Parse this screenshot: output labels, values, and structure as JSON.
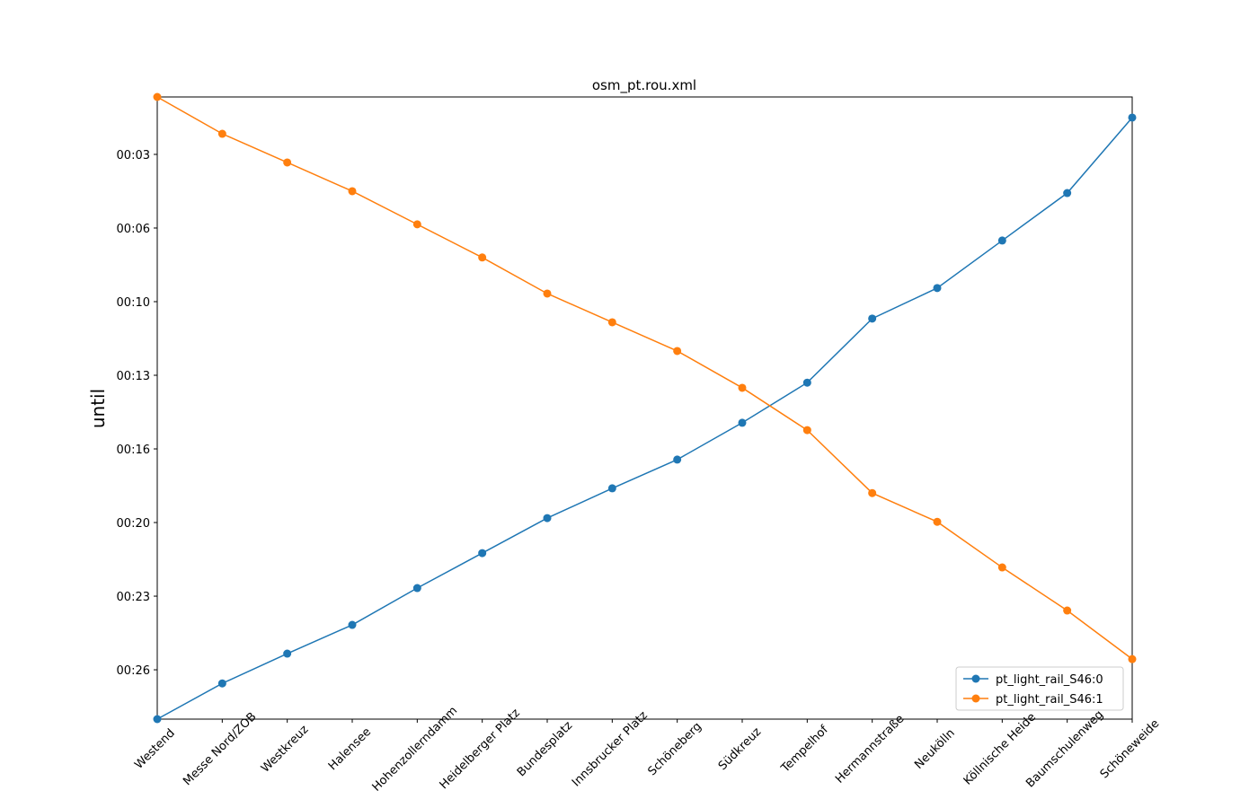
{
  "chart_data": {
    "type": "line",
    "title": "osm_pt.rou.xml",
    "y_label": "until",
    "categories": [
      "Westend",
      "Messe Nord/ZOB",
      "Westkreuz",
      "Halensee",
      "Hohenzollerndamm",
      "Heidelberger Platz",
      "Bundesplatz",
      "Innsbrucker Platz",
      "Schöneberg",
      "Südkreuz",
      "Tempelhof",
      "Hermannstraße",
      "Neukölln",
      "Köllnische Heide",
      "Baumschulenweg",
      "Schöneweide"
    ],
    "series": [
      {
        "name": "pt_light_rail_S46:0",
        "color": "#1f77b4",
        "values": [
          1734,
          1637,
          1556,
          1478,
          1378,
          1283,
          1188,
          1107,
          1029,
          929,
          820,
          646,
          563,
          434,
          305,
          100
        ]
      },
      {
        "name": "pt_light_rail_S46:1",
        "color": "#ff7f0e",
        "values": [
          44,
          144,
          222,
          300,
          390,
          480,
          578,
          656,
          734,
          834,
          949,
          1120,
          1198,
          1322,
          1439,
          1571
        ]
      }
    ],
    "ylim": [
      1734,
      44
    ],
    "yticks": [
      {
        "value": 200,
        "label": "00:03"
      },
      {
        "value": 400,
        "label": "00:06"
      },
      {
        "value": 600,
        "label": "00:10"
      },
      {
        "value": 800,
        "label": "00:13"
      },
      {
        "value": 1000,
        "label": "00:16"
      },
      {
        "value": 1200,
        "label": "00:20"
      },
      {
        "value": 1400,
        "label": "00:23"
      },
      {
        "value": 1600,
        "label": "00:26"
      }
    ],
    "legend": "lower right",
    "grid": false
  }
}
